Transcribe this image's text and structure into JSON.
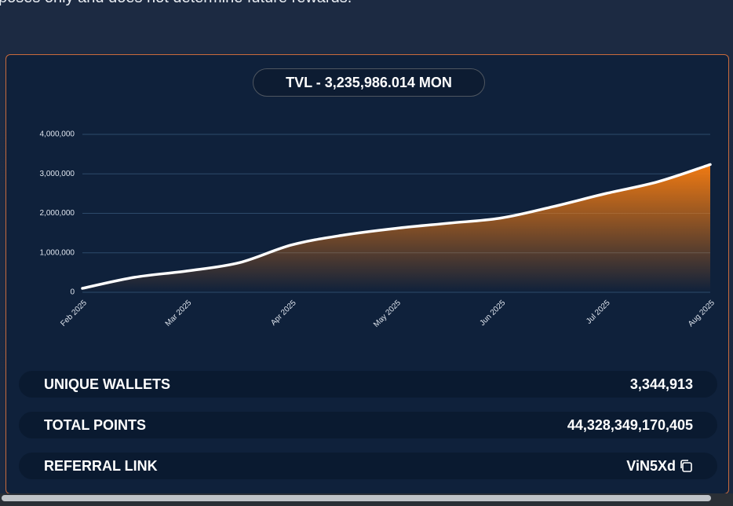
{
  "header_note": "poses only and does not determine future rewards.",
  "chart_data": {
    "type": "area",
    "title": "TVL - 3,235,986.014 MON",
    "categories": [
      "Feb 2025",
      null,
      "Mar 2025",
      null,
      "Apr 2025",
      null,
      "May 2025",
      null,
      "Jun 2025",
      null,
      "Jul 2025",
      null,
      "Aug 2025"
    ],
    "values": [
      100000,
      380000,
      540000,
      750000,
      1200000,
      1450000,
      1620000,
      1750000,
      1880000,
      2170000,
      2500000,
      2800000,
      3235986
    ],
    "color": "#f07a12",
    "line_color": "#ffffff",
    "ylim": [
      0,
      4000000
    ],
    "yticks": [
      0,
      {
        "value": 1000000,
        "label": "1,000,000"
      },
      {
        "value": 2000000,
        "label": "2,000,000"
      },
      {
        "value": 3000000,
        "label": "3,000,000"
      },
      {
        "value": 4000000,
        "label": "4,000,000"
      }
    ],
    "grid": true
  },
  "stats": {
    "rows": [
      {
        "label": "UNIQUE WALLETS",
        "value": "3,344,913"
      },
      {
        "label": "TOTAL POINTS",
        "value": "44,328,349,170,405"
      },
      {
        "label": "REFERRAL LINK",
        "value": "ViN5Xd"
      }
    ]
  }
}
